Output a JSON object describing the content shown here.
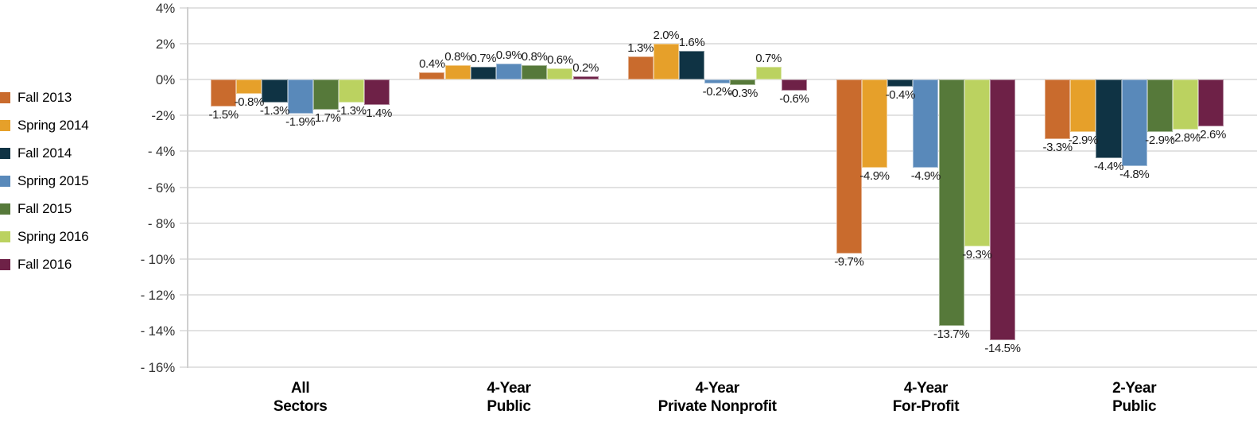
{
  "chart_data": {
    "type": "bar",
    "title": "",
    "unit": "%",
    "legend_position": "left",
    "grid": true,
    "bar_labels": true,
    "categories": [
      {
        "line1": "All",
        "line2": "Sectors"
      },
      {
        "line1": "4-Year",
        "line2": "Public"
      },
      {
        "line1": "4-Year",
        "line2": "Private Nonprofit"
      },
      {
        "line1": "4-Year",
        "line2": "For-Profit"
      },
      {
        "line1": "2-Year",
        "line2": "Public"
      }
    ],
    "series": [
      {
        "name": "Fall 2013",
        "color": "#C96B2D",
        "values": [
          -1.5,
          0.4,
          1.3,
          -9.7,
          -3.3
        ],
        "labels": [
          "-1.5%",
          "0.4%",
          "1.3%",
          "-9.7%",
          "-3.3%"
        ]
      },
      {
        "name": "Spring 2014",
        "color": "#E6A02A",
        "values": [
          -0.8,
          0.8,
          2.0,
          -4.9,
          -2.9
        ],
        "labels": [
          "-0.8%",
          "0.8%",
          "2.0%",
          "-4.9%",
          "-2.9%"
        ]
      },
      {
        "name": "Fall 2014",
        "color": "#0F3344",
        "values": [
          -1.3,
          0.7,
          1.6,
          -0.4,
          -4.4
        ],
        "labels": [
          "-1.3%",
          "0.7%",
          "1.6%",
          "-0.4%",
          "-4.4%"
        ]
      },
      {
        "name": "Spring 2015",
        "color": "#5989BA",
        "values": [
          -1.9,
          0.9,
          -0.2,
          -4.9,
          -4.8
        ],
        "labels": [
          "-1.9%",
          "0.9%",
          "-0.2%",
          "-4.9%",
          "-4.8%"
        ]
      },
      {
        "name": "Fall 2015",
        "color": "#56793A",
        "values": [
          -1.7,
          0.8,
          -0.3,
          -13.7,
          -2.9
        ],
        "labels": [
          "-1.7%",
          "0.8%",
          "-0.3%",
          "-13.7%",
          "-2.9%"
        ]
      },
      {
        "name": "Spring 2016",
        "color": "#BBD260",
        "values": [
          -1.3,
          0.6,
          0.7,
          -9.3,
          -2.8
        ],
        "labels": [
          "-1.3%",
          "0.6%",
          "0.7%",
          "-9.3%",
          "-2.8%"
        ]
      },
      {
        "name": "Fall 2016",
        "color": "#6E2147",
        "values": [
          -1.4,
          0.2,
          -0.6,
          -14.5,
          -2.6
        ],
        "labels": [
          "-1.4%",
          "0.2%",
          "-0.6%",
          "-14.5%",
          "-2.6%"
        ]
      }
    ],
    "y_axis": {
      "range": [
        -16,
        4
      ],
      "tick_step": 2,
      "ticks": [
        {
          "label": "4%",
          "value": 4
        },
        {
          "label": "2%",
          "value": 2
        },
        {
          "label": "0%",
          "value": 0
        },
        {
          "label": "-2%",
          "value": -2
        },
        {
          "label": "- 4%",
          "value": -4
        },
        {
          "label": "- 6%",
          "value": -6
        },
        {
          "label": "- 8%",
          "value": -8
        },
        {
          "label": "- 10%",
          "value": -10
        },
        {
          "label": "- 12%",
          "value": -12
        },
        {
          "label": "- 14%",
          "value": -14
        },
        {
          "label": "- 16%",
          "value": -16
        }
      ]
    }
  },
  "colors": {
    "background": "#FFFFFF",
    "gridline": "#E2E2E2",
    "axis_line": "#CFCFCF",
    "tick_label_text": "#333333",
    "bar_label_text": "#1A1A1A",
    "category_label_text": "#000000",
    "legend_text": "#000000"
  }
}
